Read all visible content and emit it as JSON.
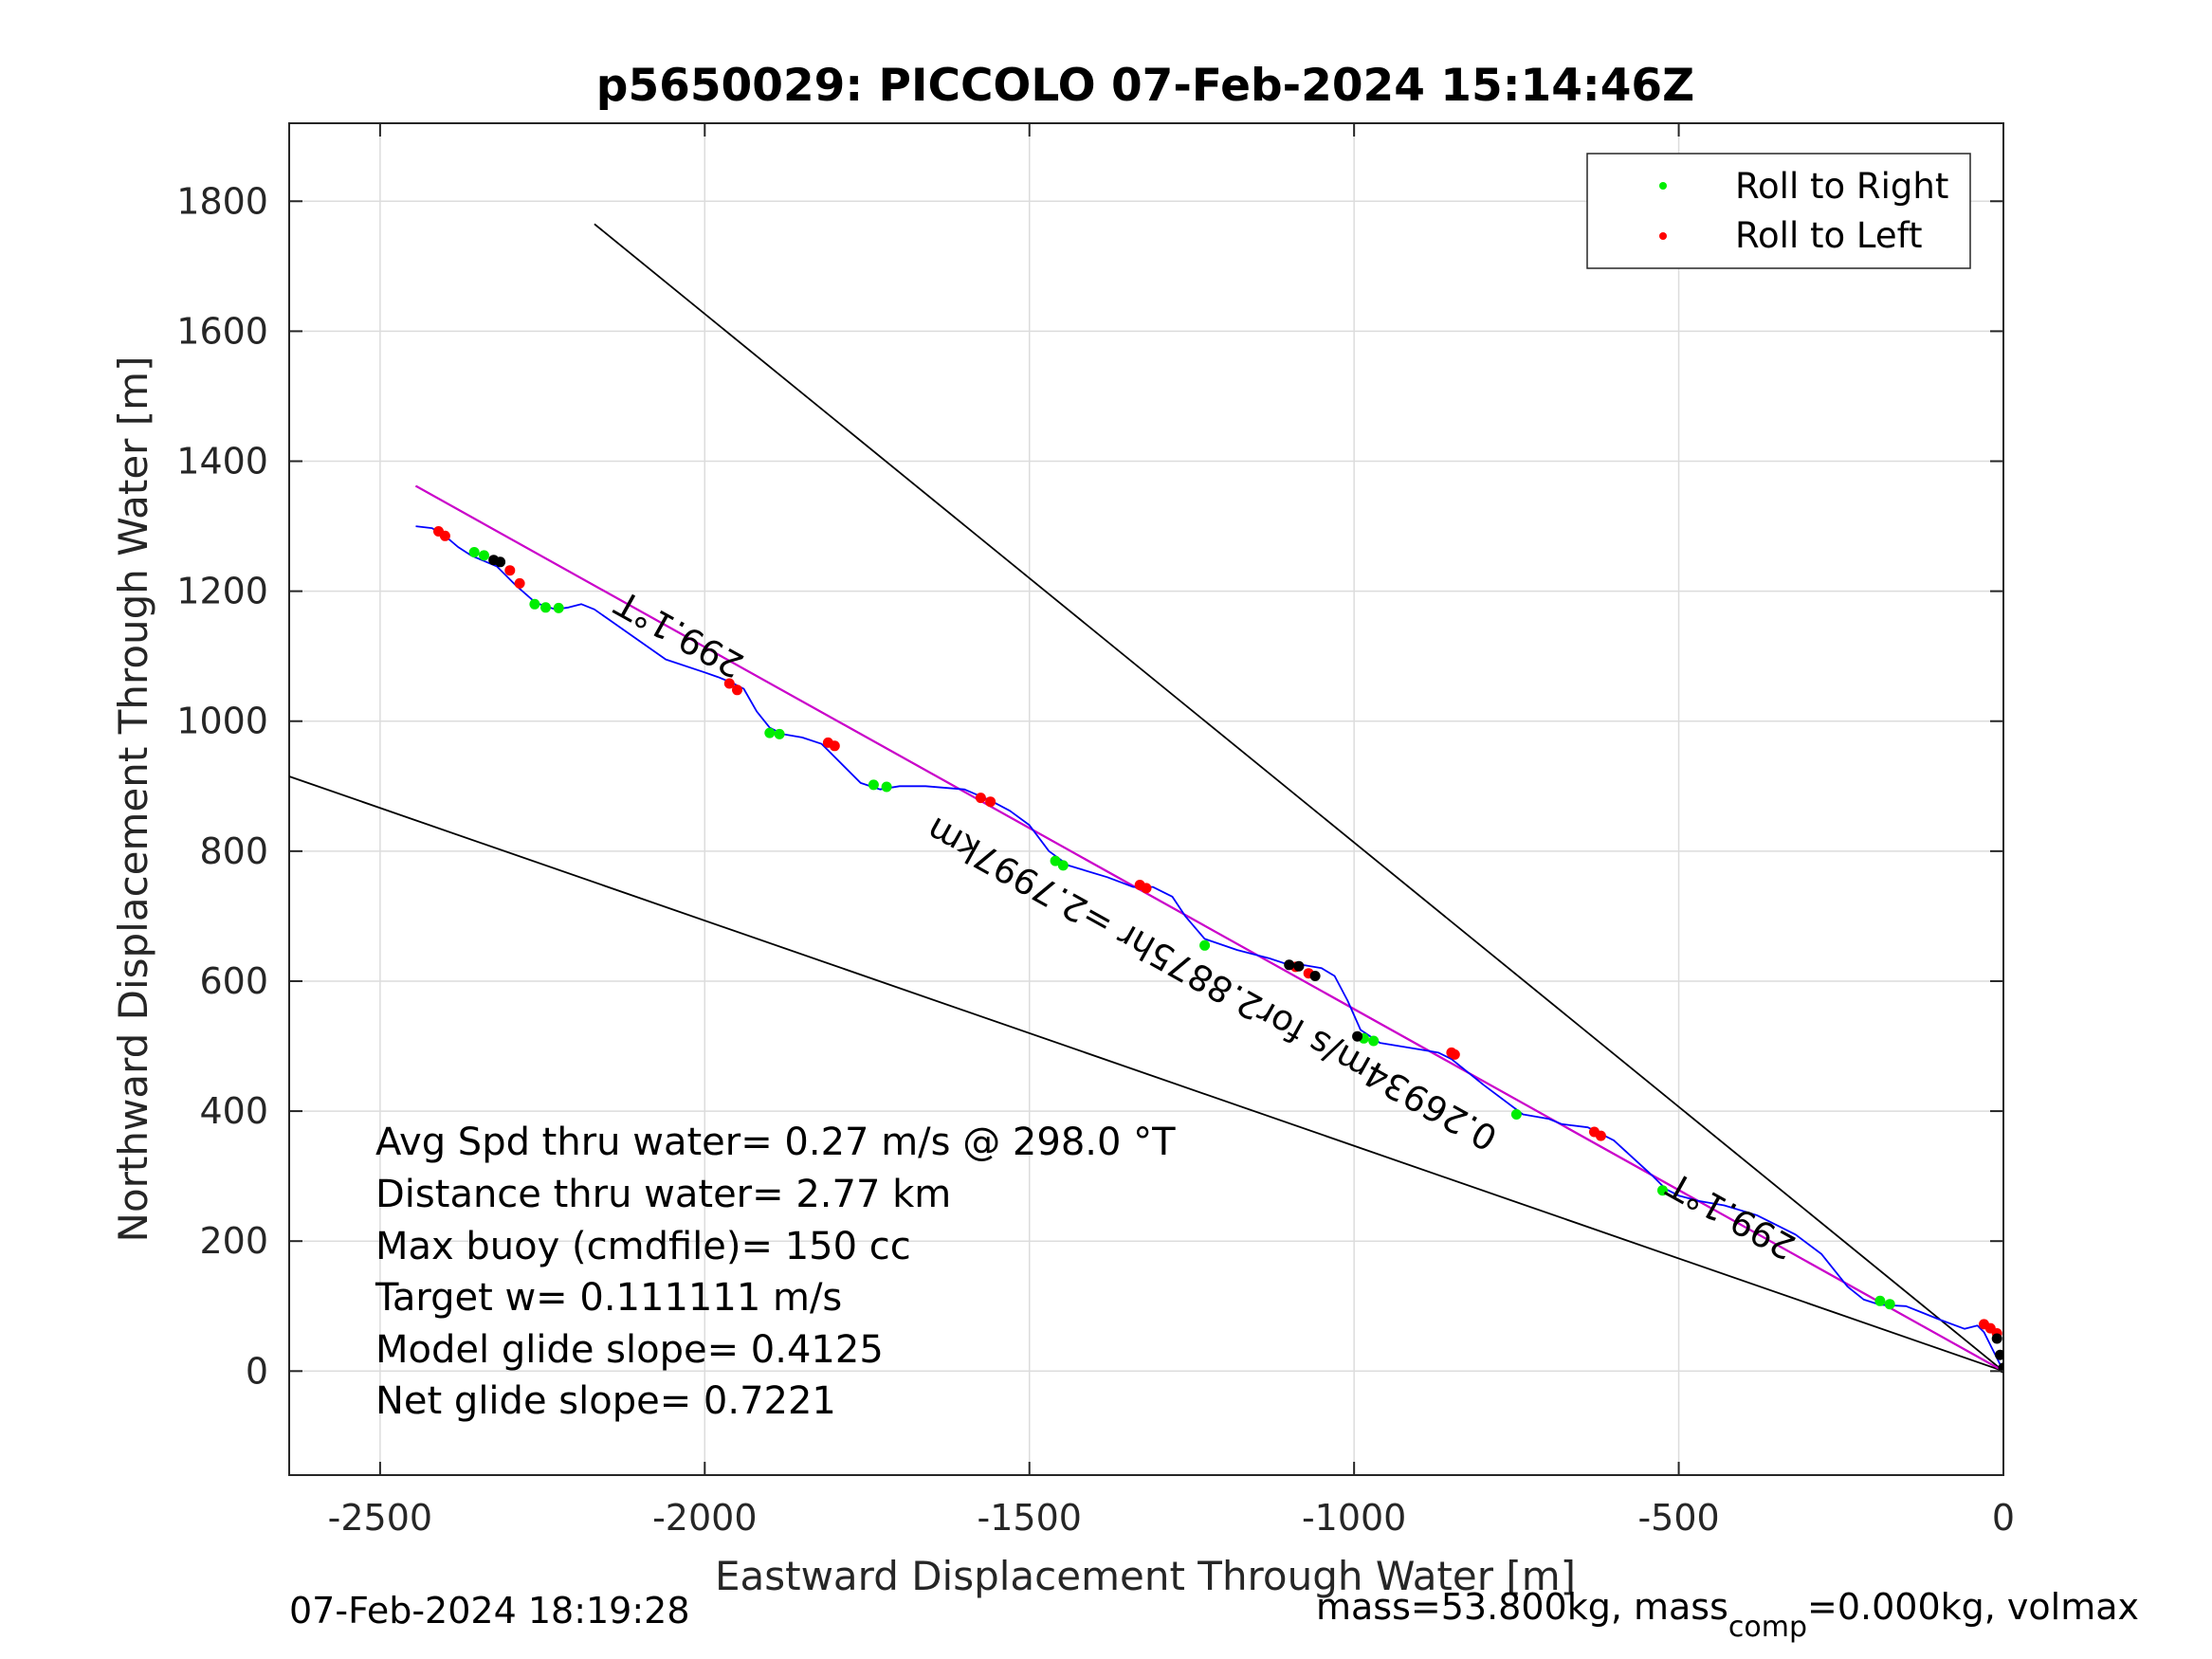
{
  "chart_data": {
    "type": "line",
    "title": "p5650029: PICCOLO 07-Feb-2024 15:14:46Z",
    "xlabel": "Eastward Displacement Through Water [m]",
    "ylabel": "Northward Displacement Through Water [m]",
    "xlim": [
      -2640,
      0
    ],
    "ylim": [
      -160,
      1920
    ],
    "xticks": [
      -2500,
      -2000,
      -1500,
      -1000,
      -500,
      0
    ],
    "xtick_labels": [
      "-2500",
      "-2000",
      "-1500",
      "-1000",
      "-500",
      "0"
    ],
    "yticks": [
      0,
      200,
      400,
      600,
      800,
      1000,
      1200,
      1400,
      1600,
      1800
    ],
    "ytick_labels": [
      "0",
      "200",
      "400",
      "600",
      "800",
      "1000",
      "1200",
      "1400",
      "1600",
      "1800"
    ],
    "grid": true,
    "legend": {
      "placement": "top-right",
      "entries": [
        {
          "label": "Roll to Right",
          "color": "#00ee00"
        },
        {
          "label": "Roll to Left",
          "color": "#ff0000"
        }
      ]
    },
    "series": [
      {
        "key": "track",
        "color": "#0000ff",
        "x": [
          0,
          -10,
          -20,
          -30,
          -40,
          -60,
          -100,
          -150,
          -190,
          -215,
          -240,
          -280,
          -320,
          -380,
          -430,
          -470,
          -500,
          -520,
          -540,
          -600,
          -640,
          -680,
          -700,
          -740,
          -800,
          -850,
          -870,
          -900,
          -960,
          -990,
          -1010,
          -1030,
          -1050,
          -1080,
          -1100,
          -1130,
          -1180,
          -1230,
          -1260,
          -1280,
          -1310,
          -1340,
          -1380,
          -1440,
          -1470,
          -1500,
          -1530,
          -1560,
          -1600,
          -1660,
          -1700,
          -1730,
          -1760,
          -1790,
          -1820,
          -1850,
          -1880,
          -1900,
          -1920,
          -1940,
          -1960,
          -1980,
          -2000,
          -2060,
          -2110,
          -2150,
          -2170,
          -2190,
          -2210,
          -2230,
          -2260,
          -2290,
          -2320,
          -2360,
          -2380,
          -2400,
          -2420,
          -2445
        ],
        "y": [
          0,
          20,
          40,
          60,
          70,
          65,
          80,
          100,
          102,
          110,
          130,
          180,
          210,
          240,
          255,
          262,
          270,
          280,
          300,
          355,
          375,
          380,
          388,
          395,
          440,
          480,
          490,
          495,
          505,
          525,
          570,
          608,
          620,
          625,
          625,
          635,
          648,
          665,
          700,
          730,
          745,
          745,
          760,
          778,
          800,
          840,
          862,
          878,
          895,
          900,
          900,
          895,
          905,
          935,
          965,
          975,
          980,
          990,
          1015,
          1050,
          1060,
          1068,
          1075,
          1095,
          1130,
          1158,
          1172,
          1180,
          1175,
          1172,
          1182,
          1208,
          1238,
          1255,
          1268,
          1285,
          1297,
          1300
        ]
      },
      {
        "key": "net-displacement",
        "color": "#cc00cc",
        "x": [
          0,
          -2445
        ],
        "y": [
          0,
          1362
        ]
      },
      {
        "key": "heading-line",
        "color": "#000000",
        "x": [
          0,
          -2445
        ],
        "y": [
          0,
          1362
        ]
      },
      {
        "key": "wedge-upper",
        "color": "#000000",
        "x": [
          0,
          -2170
        ],
        "y": [
          0,
          1765
        ]
      },
      {
        "key": "wedge-lower",
        "color": "#000000",
        "x": [
          0,
          -2640
        ],
        "y": [
          0,
          915
        ]
      }
    ],
    "roll_right": {
      "x": [
        -2355,
        -2340,
        -2262,
        -2245,
        -2225,
        -1900,
        -1885,
        -1740,
        -1720,
        -1460,
        -1448,
        -1230,
        -985,
        -970,
        -750,
        -525,
        -190,
        -175
      ],
      "y": [
        1260,
        1255,
        1180,
        1175,
        1174,
        982,
        980,
        902,
        899,
        785,
        778,
        655,
        512,
        508,
        395,
        278,
        108,
        103
      ]
    },
    "roll_left": {
      "x": [
        -2410,
        -2400,
        -2300,
        -2285,
        -1962,
        -1950,
        -1810,
        -1800,
        -1575,
        -1560,
        -1330,
        -1320,
        -1090,
        -1070,
        -850,
        -845,
        -630,
        -620,
        -30,
        -20,
        -10
      ],
      "y": [
        1292,
        1285,
        1232,
        1212,
        1058,
        1048,
        967,
        962,
        882,
        876,
        748,
        743,
        622,
        612,
        490,
        487,
        368,
        362,
        72,
        66,
        58
      ]
    },
    "roll_black": {
      "x": [
        -2325,
        -2315,
        -1100,
        -1085,
        -1060,
        -995,
        -10,
        -5,
        0
      ],
      "y": [
        1248,
        1245,
        625,
        623,
        608,
        515,
        50,
        25,
        5
      ]
    },
    "annotations": [
      {
        "text": "299.1°T",
        "x": -2030,
        "y": 1150,
        "rotation": 209.1
      },
      {
        "text": "299.1°T",
        "x": -410,
        "y": 255,
        "rotation": 209.1
      },
      {
        "text": "0.26934m/s for2.8875hr =2.7997km",
        "x": -1210,
        "y": 612,
        "rotation": 209.1
      }
    ],
    "stats": [
      "Avg Spd thru water=  0.27 m/s @ 298.0 °T",
      "Distance thru water=  2.77 km",
      "Max buoy (cmdfile)= 150 cc",
      "Target w= 0.111111 m/s",
      "Model glide slope= 0.4125",
      "Net glide slope= 0.7221"
    ]
  },
  "footer": {
    "timestamp": "07-Feb-2024 18:19:28",
    "mass_prefix": "mass=53.800kg, mass",
    "mass_sub": "comp",
    "mass_suffix": "=0.000kg, volmax"
  }
}
